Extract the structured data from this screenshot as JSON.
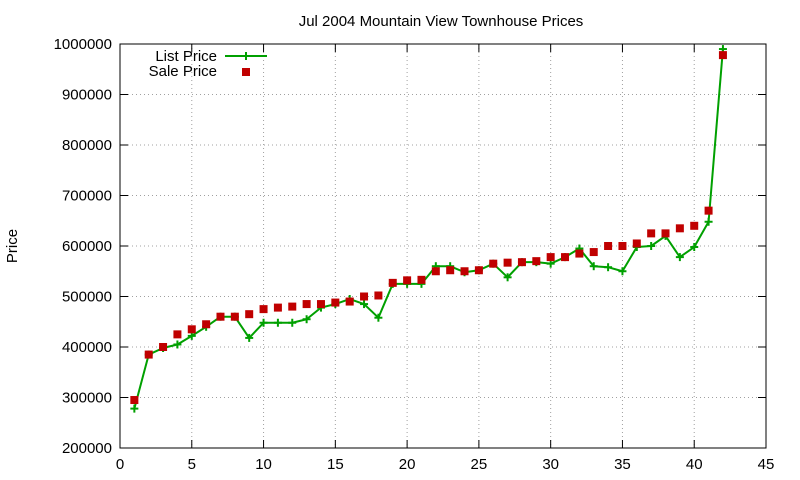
{
  "chart_data": {
    "type": "line",
    "title": "Jul 2004 Mountain View Townhouse Prices",
    "xlabel": "",
    "ylabel": "Price",
    "xlim": [
      0,
      45
    ],
    "ylim": [
      200000,
      1000000
    ],
    "x_ticks": [
      0,
      5,
      10,
      15,
      20,
      25,
      30,
      35,
      40,
      45
    ],
    "y_ticks": [
      200000,
      300000,
      400000,
      500000,
      600000,
      700000,
      800000,
      900000,
      1000000
    ],
    "grid": true,
    "legend_position": "top-left",
    "x": [
      1,
      2,
      3,
      4,
      5,
      6,
      7,
      8,
      9,
      10,
      11,
      12,
      13,
      14,
      15,
      16,
      17,
      18,
      19,
      20,
      21,
      22,
      23,
      24,
      25,
      26,
      27,
      28,
      29,
      30,
      31,
      32,
      33,
      34,
      35,
      36,
      37,
      38,
      39,
      40,
      41,
      42
    ],
    "series": [
      {
        "name": "List Price",
        "style": "line-with-plus-markers",
        "color": "#00a000",
        "values": [
          278000,
          385000,
          398000,
          405000,
          422000,
          440000,
          460000,
          460000,
          418000,
          448000,
          448000,
          448000,
          455000,
          478000,
          485000,
          495000,
          485000,
          458000,
          525000,
          525000,
          525000,
          560000,
          560000,
          548000,
          552000,
          565000,
          538000,
          568000,
          568000,
          565000,
          578000,
          595000,
          560000,
          558000,
          550000,
          598000,
          600000,
          620000,
          578000,
          598000,
          648000,
          990000
        ]
      },
      {
        "name": "Sale Price",
        "style": "square-markers",
        "color": "#c00000",
        "values": [
          295000,
          385000,
          400000,
          425000,
          435000,
          445000,
          460000,
          460000,
          465000,
          475000,
          478000,
          480000,
          485000,
          485000,
          488000,
          490000,
          500000,
          502000,
          527000,
          532000,
          533000,
          550000,
          552000,
          550000,
          552000,
          565000,
          567000,
          568000,
          570000,
          578000,
          578000,
          585000,
          588000,
          600000,
          600000,
          605000,
          625000,
          625000,
          635000,
          640000,
          670000,
          978000
        ]
      }
    ]
  }
}
